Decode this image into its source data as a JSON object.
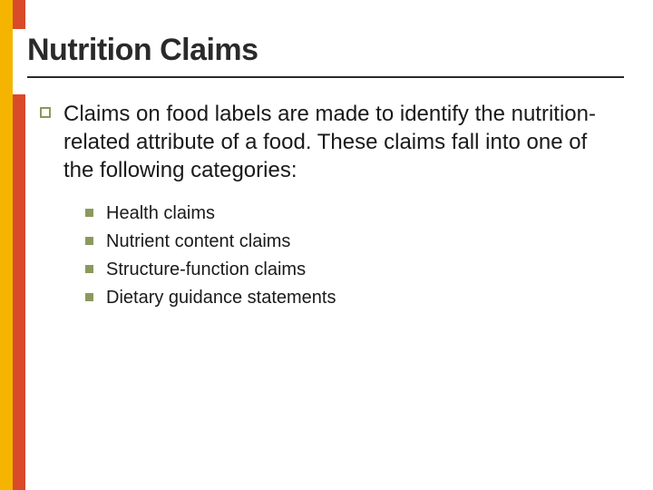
{
  "colors": {
    "stripe_yellow": "#f4b400",
    "stripe_red": "#d84a2a",
    "bullet_olive": "#8a9a5b",
    "text": "#1a1a1a",
    "underline": "#2a2a2a",
    "background": "#ffffff"
  },
  "typography": {
    "title_fontsize": 34,
    "title_weight": "bold",
    "body_fontsize": 24,
    "sub_fontsize": 20,
    "font_family": "Verdana"
  },
  "title": "Nutrition Claims",
  "intro": "Claims on food labels are made to identify the nutrition-related attribute of a food. These claims fall into one of the following categories:",
  "items": [
    "Health claims",
    "Nutrient content claims",
    "Structure-function claims",
    "Dietary guidance statements"
  ]
}
